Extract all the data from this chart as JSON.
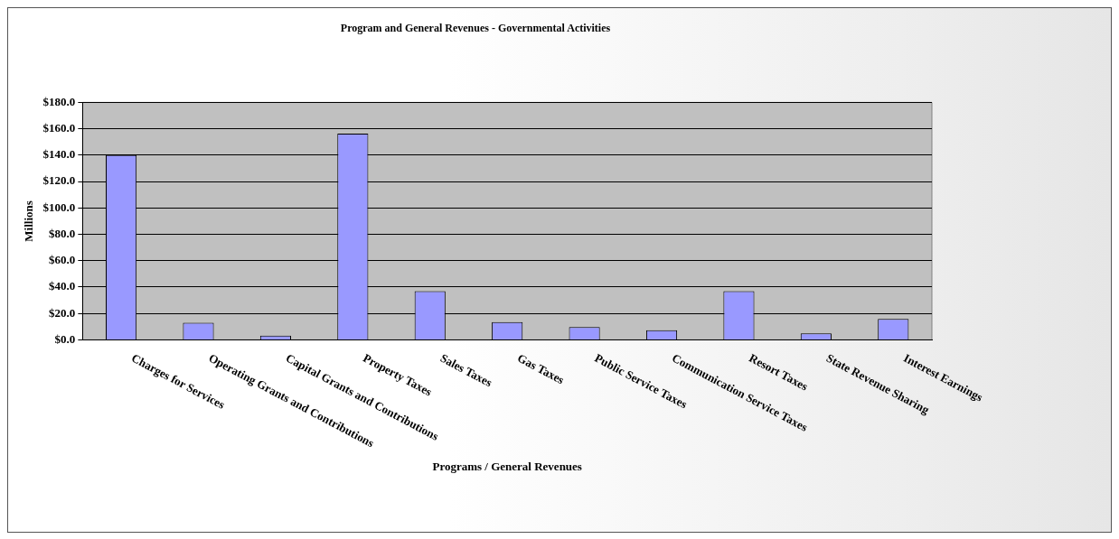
{
  "chart_data": {
    "type": "bar",
    "title": "Program and General Revenues - Governmental Activities",
    "xlabel": "Programs / General Revenues",
    "ylabel": "Millions",
    "categories": [
      "Charges for Services",
      "Operating Grants and Contributions",
      "Capital Grants and Contributions",
      "Property Taxes",
      "Sales Taxes",
      "Gas Taxes",
      "Public Service Taxes",
      "Communication Service Taxes",
      "Resort Taxes",
      "State Revenue Sharing",
      "Interest Earnings"
    ],
    "values": [
      140.0,
      12.9,
      3.2,
      156.3,
      36.9,
      13.4,
      9.7,
      7.3,
      36.9,
      4.9,
      15.8
    ],
    "color": "#9999ff",
    "ylim": [
      0,
      180
    ],
    "yticks": [
      {
        "value": 0,
        "label": "$0.0"
      },
      {
        "value": 20,
        "label": "$20.0"
      },
      {
        "value": 40,
        "label": "$40.0"
      },
      {
        "value": 60,
        "label": "$60.0"
      },
      {
        "value": 80,
        "label": "$80.0"
      },
      {
        "value": 100,
        "label": "$100.0"
      },
      {
        "value": 120,
        "label": "$120.0"
      },
      {
        "value": 140,
        "label": "$140.0"
      },
      {
        "value": 160,
        "label": "$160.0"
      },
      {
        "value": 180,
        "label": "$180.0"
      }
    ],
    "grid": "y"
  }
}
